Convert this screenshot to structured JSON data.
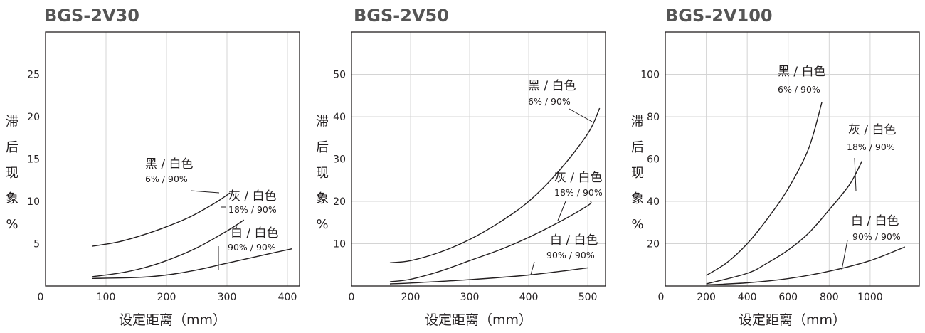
{
  "chart_data": [
    {
      "type": "line",
      "title": "BGS-2V30",
      "ylabel": "滞后现象%",
      "ylabel_chars": [
        "滞",
        "后",
        "现",
        "象",
        "%"
      ],
      "xlabel": "设定距离（mm）",
      "xlim": [
        0,
        420
      ],
      "ylim": [
        0,
        30
      ],
      "x_ticks": [
        0,
        100,
        200,
        300,
        400
      ],
      "y_ticks": [
        5,
        10,
        15,
        20,
        25
      ],
      "y_grid": false,
      "series": [
        {
          "name": "黑 / 白色",
          "label_values": "6% / 90%",
          "points": [
            [
              77,
              4.7
            ],
            [
              120,
              5.2
            ],
            [
              160,
              6.0
            ],
            [
              200,
              7.0
            ],
            [
              240,
              8.2
            ],
            [
              280,
              9.8
            ],
            [
              305,
              11.0
            ]
          ]
        },
        {
          "name": "灰 / 白色",
          "label_values": "18% / 90%",
          "points": [
            [
              77,
              1.1
            ],
            [
              120,
              1.5
            ],
            [
              160,
              2.1
            ],
            [
              200,
              3.0
            ],
            [
              250,
              4.5
            ],
            [
              300,
              6.5
            ],
            [
              328,
              7.8
            ]
          ]
        },
        {
          "name": "白 / 白色",
          "label_values": "90% / 90%",
          "points": [
            [
              77,
              0.9
            ],
            [
              150,
              1.0
            ],
            [
              200,
              1.3
            ],
            [
              250,
              1.9
            ],
            [
              300,
              2.7
            ],
            [
              350,
              3.5
            ],
            [
              408,
              4.4
            ]
          ]
        }
      ]
    },
    {
      "type": "line",
      "title": "BGS-2V50",
      "ylabel": "滞后现象%",
      "ylabel_chars": [
        "滞",
        "后",
        "现",
        "象",
        "%"
      ],
      "xlabel": "设定距离（mm）",
      "xlim": [
        100,
        530
      ],
      "ylim": [
        0,
        60
      ],
      "x_ticks": [
        0,
        200,
        300,
        400,
        500
      ],
      "y_ticks": [
        10,
        20,
        30,
        40,
        50
      ],
      "y_grid": true,
      "series": [
        {
          "name": "黑 / 白色",
          "label_values": "6% / 90%",
          "points": [
            [
              165,
              5.5
            ],
            [
              200,
              6.0
            ],
            [
              250,
              8.0
            ],
            [
              300,
              11.0
            ],
            [
              350,
              15.0
            ],
            [
              400,
              20.0
            ],
            [
              450,
              27.0
            ],
            [
              500,
              36.0
            ],
            [
              520,
              42.0
            ]
          ]
        },
        {
          "name": "灰 / 白色",
          "label_values": "18% / 90%",
          "points": [
            [
              165,
              1.0
            ],
            [
              200,
              1.6
            ],
            [
              250,
              3.5
            ],
            [
              300,
              6.0
            ],
            [
              350,
              8.5
            ],
            [
              400,
              11.5
            ],
            [
              450,
              15.0
            ],
            [
              500,
              19.0
            ],
            [
              505,
              20.0
            ]
          ]
        },
        {
          "name": "白 / 白色",
          "label_values": "90% / 90%",
          "points": [
            [
              165,
              0.5
            ],
            [
              200,
              0.7
            ],
            [
              300,
              1.5
            ],
            [
              400,
              2.6
            ],
            [
              500,
              4.3
            ]
          ]
        }
      ]
    },
    {
      "type": "line",
      "title": "BGS-2V100",
      "ylabel": "滞后现象%",
      "ylabel_chars": [
        "滞",
        "后",
        "现",
        "象",
        "%"
      ],
      "xlabel": "设定距离（mm）",
      "xlim": [
        0,
        1240
      ],
      "ylim": [
        0,
        120
      ],
      "x_ticks": [
        0,
        200,
        400,
        600,
        800,
        1000
      ],
      "y_ticks": [
        20,
        40,
        60,
        80,
        100
      ],
      "y_grid": true,
      "series": [
        {
          "name": "黑 / 白色",
          "label_values": "6% / 90%",
          "points": [
            [
              200,
              5.0
            ],
            [
              300,
              11.0
            ],
            [
              400,
              20.0
            ],
            [
              500,
              32.0
            ],
            [
              600,
              46.0
            ],
            [
              700,
              65.0
            ],
            [
              765,
              87.0
            ]
          ]
        },
        {
          "name": "灰 / 白色",
          "label_values": "18% / 90%",
          "points": [
            [
              200,
              1.0
            ],
            [
              400,
              6.0
            ],
            [
              500,
              11.0
            ],
            [
              600,
              17.0
            ],
            [
              700,
              25.0
            ],
            [
              800,
              36.0
            ],
            [
              900,
              48.0
            ],
            [
              960,
              59.0
            ]
          ]
        },
        {
          "name": "白 / 白色",
          "label_values": "90% / 90%",
          "points": [
            [
              200,
              0.5
            ],
            [
              400,
              1.5
            ],
            [
              600,
              3.5
            ],
            [
              800,
              7.0
            ],
            [
              1000,
              12.0
            ],
            [
              1170,
              18.5
            ]
          ]
        }
      ]
    }
  ]
}
